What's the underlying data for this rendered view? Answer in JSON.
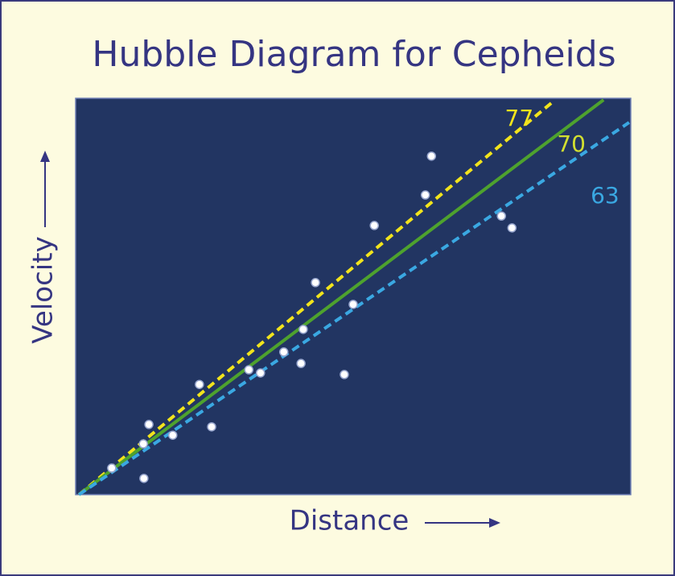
{
  "chart_data": {
    "type": "scatter",
    "title": "Hubble Diagram for Cepheids",
    "xlabel": "Distance",
    "ylabel": "Velocity",
    "xlim": [
      0,
      100
    ],
    "ylim": [
      0,
      100
    ],
    "color": "#ffffff",
    "x": [
      6.5,
      12.2,
      13.2,
      12.3,
      17.5,
      22.3,
      24.5,
      31.2,
      33.3,
      37.5,
      40.6,
      41.0,
      43.2,
      48.4,
      50.0,
      53.8,
      63.0,
      64.1,
      76.7,
      78.6
    ],
    "values": [
      6.7,
      12.8,
      17.7,
      4.1,
      15.0,
      27.8,
      17.1,
      31.5,
      30.7,
      36.0,
      33.1,
      41.7,
      53.5,
      30.3,
      48.0,
      67.9,
      75.6,
      85.4,
      70.3,
      67.3
    ],
    "series": [
      {
        "name": "77",
        "color": "#f2e41c",
        "dashed": true,
        "x": [
          0.6,
          85.7
        ],
        "values": [
          0,
          98.8
        ]
      },
      {
        "name": "70",
        "color": "#4ea22e",
        "label_color": "#d2df30",
        "dashed": false,
        "x": [
          0.6,
          95.1
        ],
        "values": [
          0,
          99.6
        ]
      },
      {
        "name": "63",
        "color": "#3aa8e2",
        "dashed": true,
        "x": [
          0.6,
          99.7
        ],
        "values": [
          0,
          93.9
        ]
      }
    ]
  }
}
